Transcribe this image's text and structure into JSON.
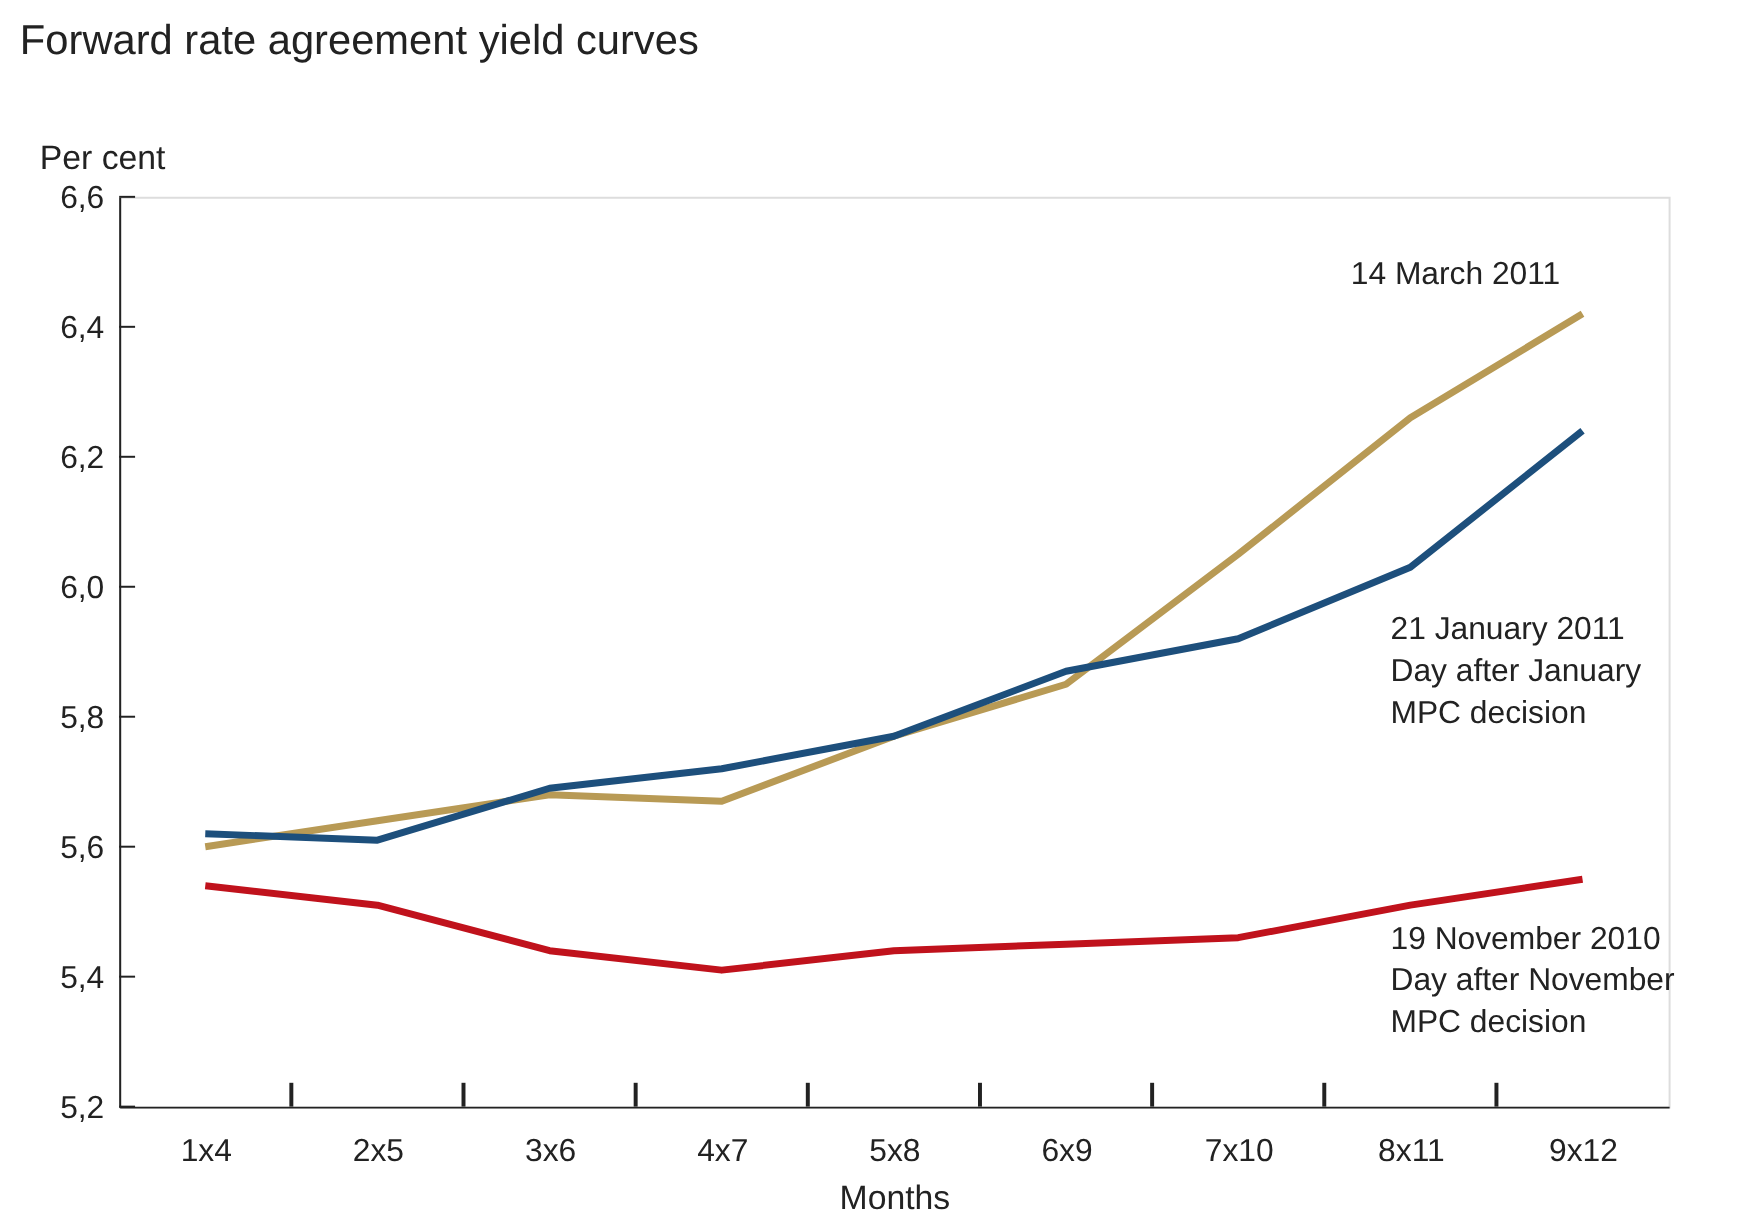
{
  "chart_data": {
    "type": "line",
    "title": "Forward rate agreement yield curves",
    "ylabel": "Per cent",
    "xlabel": "Months",
    "categories": [
      "1x4",
      "2x5",
      "3x6",
      "4x7",
      "5x8",
      "6x9",
      "7x10",
      "8x11",
      "9x12"
    ],
    "series": [
      {
        "name": "14 March 2011",
        "color": "#b89a55",
        "values": [
          5.6,
          5.64,
          5.68,
          5.67,
          5.77,
          5.85,
          6.05,
          6.26,
          6.42
        ]
      },
      {
        "name": "21 January 2011\n \nDay after January\nMPC decision",
        "color": "#1d4f7c",
        "values": [
          5.62,
          5.61,
          5.69,
          5.72,
          5.77,
          5.87,
          5.92,
          6.03,
          6.24
        ]
      },
      {
        "name": "19 November 2010\n \nDay after November\nMPC decision",
        "color": "#c0121c",
        "values": [
          5.54,
          5.51,
          5.44,
          5.41,
          5.44,
          5.45,
          5.46,
          5.51,
          5.55
        ]
      }
    ],
    "ylim": [
      5.2,
      6.6
    ],
    "yticks": [
      {
        "value": 5.2,
        "label": "5,2"
      },
      {
        "value": 5.4,
        "label": "5,4"
      },
      {
        "value": 5.6,
        "label": "5,6"
      },
      {
        "value": 5.8,
        "label": "5,8"
      },
      {
        "value": 6.0,
        "label": "6,0"
      },
      {
        "value": 6.2,
        "label": "6,2"
      },
      {
        "value": 6.4,
        "label": "6,4"
      },
      {
        "value": 6.6,
        "label": "6,6"
      }
    ],
    "grid": false,
    "legend": false,
    "marker": "none",
    "line_style": "solid"
  }
}
